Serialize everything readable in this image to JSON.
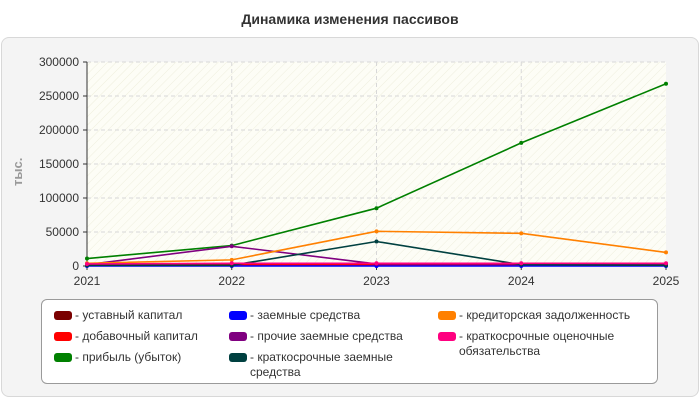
{
  "chart_data": {
    "type": "line",
    "title": "Динамика изменения пассивов",
    "ylabel": "тыс.",
    "xlabel": "",
    "x": [
      2021,
      2022,
      2023,
      2024,
      2025
    ],
    "ylim": [
      0,
      300000
    ],
    "yticks": [
      0,
      50000,
      100000,
      150000,
      200000,
      250000,
      300000
    ],
    "grid": true,
    "legend_position": "bottom",
    "series": [
      {
        "name": "уставный капитал",
        "color": "#7a0000",
        "values": [
          1000,
          1000,
          1000,
          1000,
          1000
        ]
      },
      {
        "name": "добавочный капитал",
        "color": "#ff0000",
        "values": [
          2000,
          2000,
          2000,
          2000,
          2000
        ]
      },
      {
        "name": "прибыль (убыток)",
        "color": "#008000",
        "values": [
          11000,
          30000,
          85000,
          181000,
          268000
        ]
      },
      {
        "name": "заемные средства",
        "color": "#0000ff",
        "values": [
          0,
          0,
          0,
          0,
          0
        ]
      },
      {
        "name": "прочие заемные средства",
        "color": "#800080",
        "values": [
          2000,
          29000,
          3000,
          3000,
          3000
        ]
      },
      {
        "name": "краткосрочные заемные средства",
        "color": "#004040",
        "values": [
          1000,
          1000,
          36000,
          2000,
          1000
        ]
      },
      {
        "name": "кредиторская задолженность",
        "color": "#ff8000",
        "values": [
          4000,
          9000,
          51000,
          48000,
          20000
        ]
      },
      {
        "name": "краткосрочные оценочные обязательства",
        "color": "#ff0080",
        "values": [
          3000,
          4000,
          4000,
          4000,
          4000
        ]
      }
    ]
  }
}
